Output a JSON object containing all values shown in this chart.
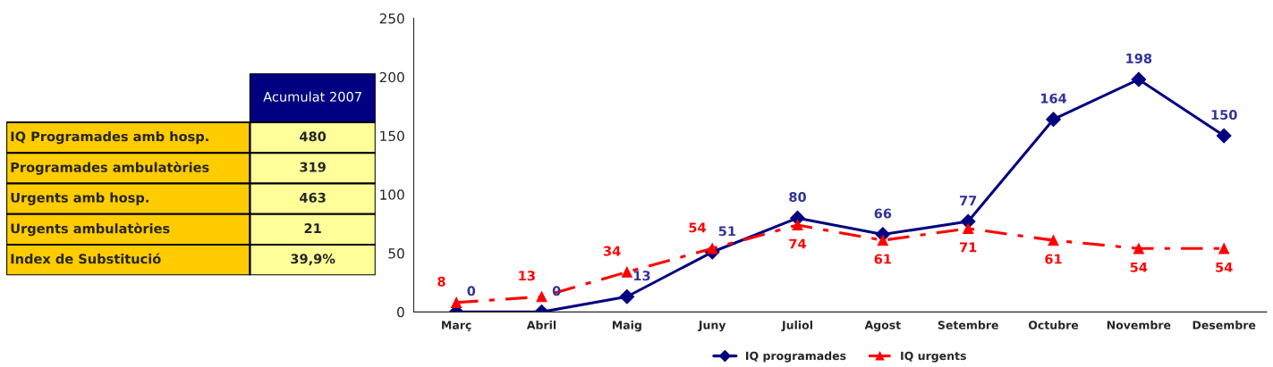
{
  "chart_data": [
    {
      "type": "other",
      "title": "Acumulat 2007",
      "categories": [
        "IQ Programades amb hosp.",
        "Programades ambulatòries",
        "Urgents amb hosp.",
        "Urgents ambulatòries",
        "Index de Substitució"
      ],
      "value_labels": [
        "480",
        "319",
        "463",
        "21",
        "39,9%"
      ]
    },
    {
      "type": "line",
      "categories": [
        "Març",
        "Abril",
        "Maig",
        "Juny",
        "Juliol",
        "Agost",
        "Setembre",
        "Octubre",
        "Novembre",
        "Desembre"
      ],
      "series": [
        {
          "name": "IQ programades",
          "color": "#000080",
          "marker": "diamond",
          "line_style": "solid",
          "values": [
            0,
            0,
            13,
            51,
            80,
            66,
            77,
            164,
            198,
            150
          ]
        },
        {
          "name": "IQ urgents",
          "color": "#ff0000",
          "marker": "triangle",
          "line_style": "dashed",
          "values": [
            8,
            13,
            34,
            54,
            74,
            61,
            71,
            61,
            54,
            54
          ]
        }
      ],
      "ylim": [
        0,
        250
      ],
      "yticks": [
        0,
        50,
        100,
        150,
        200,
        250
      ],
      "data_labels": true,
      "legend": "bottom",
      "grid": false
    }
  ]
}
